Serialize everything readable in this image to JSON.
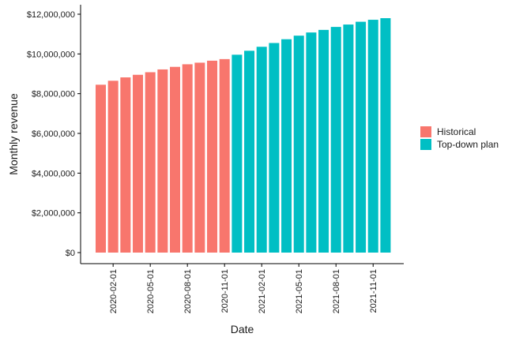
{
  "chart_data": {
    "type": "bar",
    "title": "",
    "xlabel": "Date",
    "ylabel": "Monthly revenue",
    "ylim": [
      0,
      12000000
    ],
    "yticks": [
      0,
      2000000,
      4000000,
      6000000,
      8000000,
      10000000,
      12000000
    ],
    "ytick_labels": [
      "$0",
      "$2,000,000",
      "$4,000,000",
      "$6,000,000",
      "$8,000,000",
      "$10,000,000",
      "$12,000,000"
    ],
    "xtick_labels": [
      "2020-02-01",
      "2020-05-01",
      "2020-08-01",
      "2020-11-01",
      "2021-02-01",
      "2021-05-01",
      "2021-08-01",
      "2021-11-01"
    ],
    "x_start": "2020-01-01",
    "legend_position": "right",
    "grid": false,
    "series": [
      {
        "name": "Historical",
        "color": "#F8766D",
        "x": [
          "2020-01-01",
          "2020-02-01",
          "2020-03-01",
          "2020-04-01",
          "2020-05-01",
          "2020-06-01",
          "2020-07-01",
          "2020-08-01",
          "2020-09-01",
          "2020-10-01",
          "2020-11-01"
        ],
        "values": [
          8450000,
          8650000,
          8820000,
          8950000,
          9080000,
          9220000,
          9350000,
          9480000,
          9560000,
          9660000,
          9740000
        ]
      },
      {
        "name": "Top-down plan",
        "color": "#00BFC4",
        "x": [
          "2020-12-01",
          "2021-01-01",
          "2021-02-01",
          "2021-03-01",
          "2021-04-01",
          "2021-05-01",
          "2021-06-01",
          "2021-07-01",
          "2021-08-01",
          "2021-09-01",
          "2021-10-01",
          "2021-11-01",
          "2021-12-01"
        ],
        "values": [
          9960000,
          10160000,
          10360000,
          10550000,
          10740000,
          10920000,
          11080000,
          11210000,
          11360000,
          11480000,
          11620000,
          11720000,
          11800000
        ]
      }
    ]
  }
}
